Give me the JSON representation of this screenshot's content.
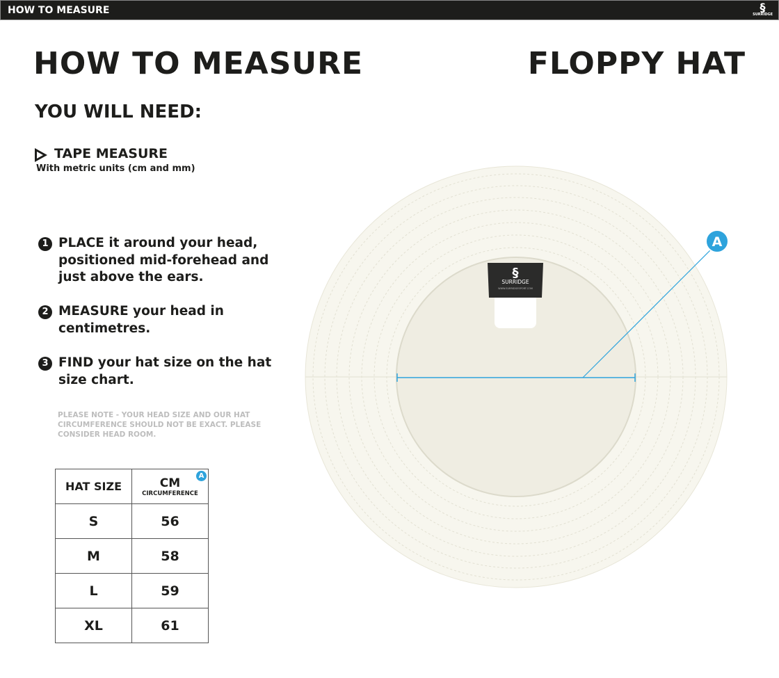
{
  "header": {
    "title": "HOW TO MEASURE",
    "logo": "SURRIDGE"
  },
  "main": {
    "title": "HOW TO MEASURE",
    "product": "FLOPPY HAT",
    "you_will_need": "YOU WILL NEED:",
    "tape": {
      "label": "TAPE MEASURE",
      "sub": "With metric units (cm and mm)"
    },
    "steps": [
      {
        "num": "1",
        "text": "PLACE it around your head, positioned mid-forehead and just above the ears."
      },
      {
        "num": "2",
        "text": "MEASURE your head in centimetres."
      },
      {
        "num": "3",
        "text": "FIND your hat size on the hat size chart."
      }
    ],
    "note": "PLEASE NOTE - YOUR HEAD SIZE AND OUR HAT CIRCUMFERENCE SHOULD NOT BE EXACT. PLEASE CONSIDER HEAD ROOM."
  },
  "table": {
    "headers": [
      "HAT SIZE",
      "CM",
      "CIRCUMFERENCE"
    ],
    "marker": "A",
    "rows": [
      [
        "S",
        "56"
      ],
      [
        "M",
        "58"
      ],
      [
        "L",
        "59"
      ],
      [
        "XL",
        "61"
      ]
    ]
  },
  "diagram": {
    "marker": "A",
    "label_brand": "SURRIDGE",
    "label_url": "WWW.SURRIDGESPORT.COM",
    "accent": "#2ea3dc"
  }
}
